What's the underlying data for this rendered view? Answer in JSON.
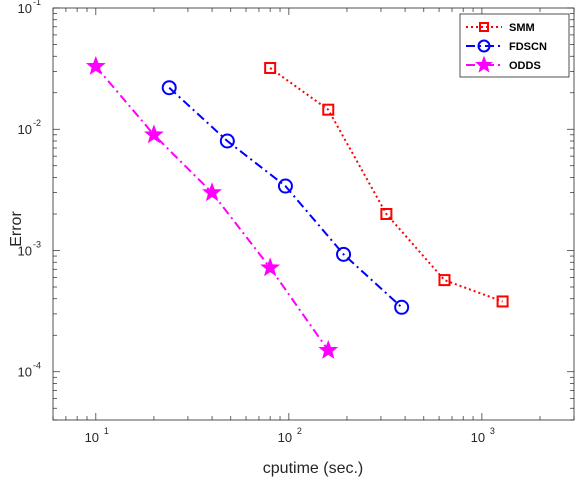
{
  "chart_data": {
    "type": "line",
    "x_scale": "log",
    "y_scale": "log",
    "xlabel": "cputime (sec.)",
    "ylabel": "Error",
    "xlim": [
      6,
      3000
    ],
    "ylim": [
      4e-05,
      0.1
    ],
    "x_ticks": [
      {
        "value": 10,
        "base": "10",
        "exp": "1"
      },
      {
        "value": 100,
        "base": "10",
        "exp": "2"
      },
      {
        "value": 1000,
        "base": "10",
        "exp": "3"
      }
    ],
    "y_ticks": [
      {
        "value": 0.0001,
        "base": "10",
        "exp": "-4"
      },
      {
        "value": 0.001,
        "base": "10",
        "exp": "-3"
      },
      {
        "value": 0.01,
        "base": "10",
        "exp": "-2"
      },
      {
        "value": 0.1,
        "base": "10",
        "exp": "-1"
      }
    ],
    "grid": false,
    "legend_position": "top-right",
    "series": [
      {
        "name": "SMM",
        "color": "#ff0000",
        "marker": "square",
        "line_style": "dotted",
        "x": [
          80,
          160,
          320,
          640,
          1280
        ],
        "y": [
          0.032,
          0.0145,
          0.002,
          0.00057,
          0.00038
        ]
      },
      {
        "name": "FDSCN",
        "color": "#0000ff",
        "marker": "circle",
        "line_style": "dash-dot",
        "x": [
          24,
          48,
          96,
          192,
          384
        ],
        "y": [
          0.022,
          0.008,
          0.0034,
          0.00093,
          0.00034
        ]
      },
      {
        "name": "ODDS",
        "color": "#ff00ff",
        "marker": "star",
        "line_style": "dash-dot",
        "x": [
          10,
          20,
          40,
          80,
          160
        ],
        "y": [
          0.033,
          0.009,
          0.003,
          0.00072,
          0.00015
        ]
      }
    ]
  }
}
